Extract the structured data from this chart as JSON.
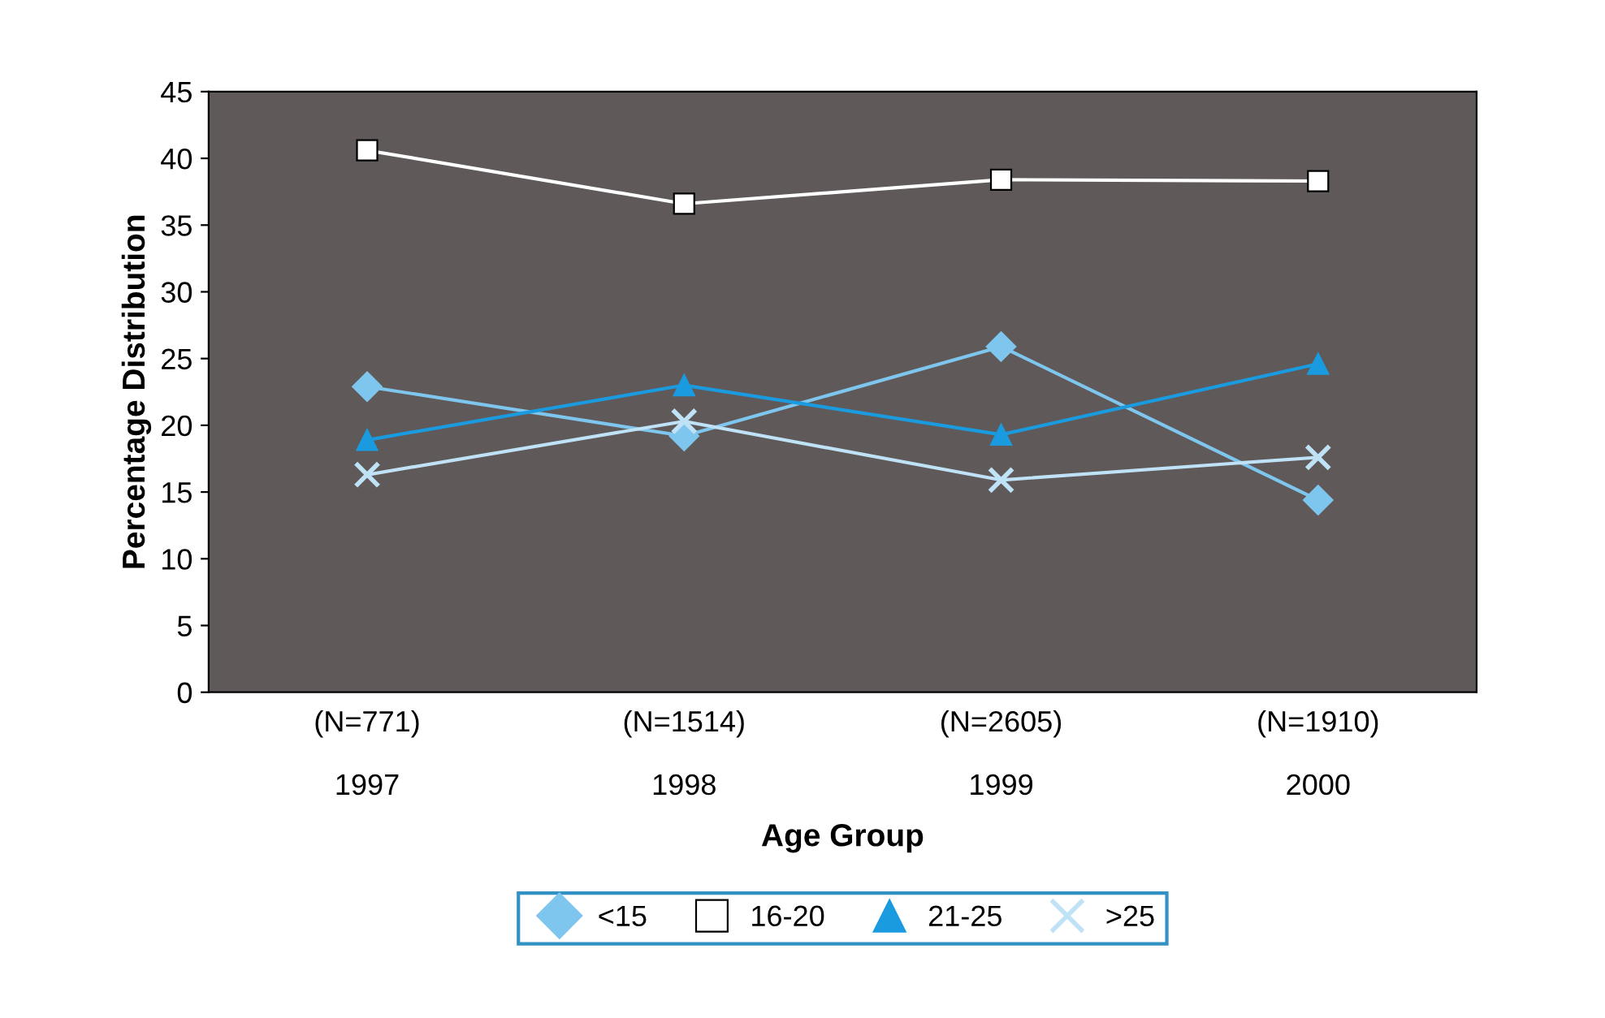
{
  "chart_data": {
    "type": "line",
    "xlabel": "Age Group",
    "ylabel": "Percentage Distribution",
    "categories": [
      "(N=771)\n\n1997",
      "(N=1514)\n\n1998",
      "(N=2605)\n\n1999",
      "(N=1910)\n\n2000"
    ],
    "series": [
      {
        "name": "<15",
        "color": "#7fc6ee",
        "marker": "diamond",
        "values": [
          22.9,
          19.2,
          25.9,
          14.4
        ]
      },
      {
        "name": "16-20",
        "color": "#ffffff",
        "marker": "square",
        "values": [
          40.6,
          36.6,
          38.4,
          38.3
        ]
      },
      {
        "name": "21-25",
        "color": "#1a9be0",
        "marker": "triangle",
        "values": [
          18.9,
          23.0,
          19.3,
          24.6
        ]
      },
      {
        "name": ">25",
        "color": "#bfe2f6",
        "marker": "cross",
        "values": [
          16.3,
          20.3,
          15.9,
          17.6
        ]
      }
    ],
    "ylim": [
      0,
      45
    ],
    "yticks": [
      0,
      5,
      10,
      15,
      20,
      25,
      30,
      35,
      40,
      45
    ],
    "grid": false,
    "legend": "bottom"
  }
}
